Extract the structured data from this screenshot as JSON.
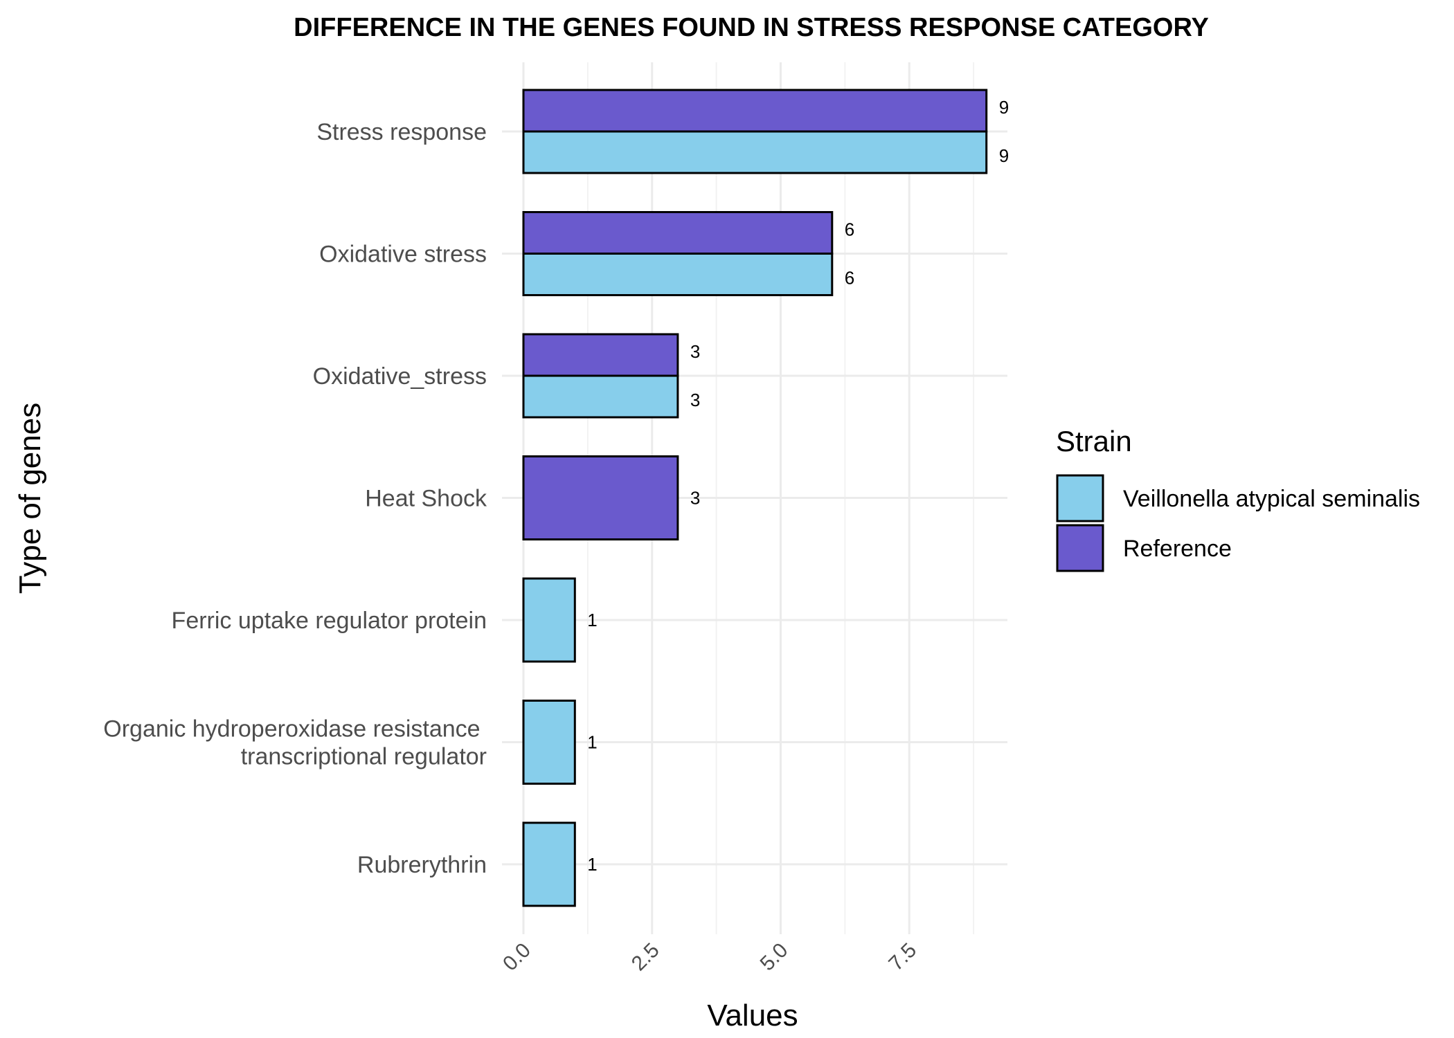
{
  "chart_data": {
    "type": "bar",
    "orientation": "horizontal",
    "title": "DIFFERENCE IN THE GENES FOUND IN STRESS RESPONSE CATEGORY",
    "xlabel": "Values",
    "ylabel": "Type of genes",
    "xlim": [
      0,
      9.5
    ],
    "x_ticks": [
      "0.0",
      "2.5",
      "5.0",
      "7.5"
    ],
    "x_tick_values": [
      0,
      2.5,
      5,
      7.5
    ],
    "grid": true,
    "legend": {
      "title": "Strain",
      "position": "right",
      "entries": [
        {
          "name": "Veillonella atypical seminalis",
          "color": "#87ceeb"
        },
        {
          "name": "Reference",
          "color": "#6a5acd"
        }
      ]
    },
    "categories": [
      {
        "label": [
          "Stress response"
        ],
        "values": {
          "Reference": 9,
          "Veillonella atypical seminalis": 9
        }
      },
      {
        "label": [
          "Oxidative stress"
        ],
        "values": {
          "Reference": 6,
          "Veillonella atypical seminalis": 6
        }
      },
      {
        "label": [
          "Oxidative_stress"
        ],
        "values": {
          "Reference": 3,
          "Veillonella atypical seminalis": 3
        }
      },
      {
        "label": [
          "Heat Shock"
        ],
        "values": {
          "Reference": 3
        }
      },
      {
        "label": [
          "Ferric uptake regulator protein"
        ],
        "values": {
          "Veillonella atypical seminalis": 1
        }
      },
      {
        "label": [
          "Organic hydroperoxidase resistance ",
          "transcriptional regulator"
        ],
        "values": {
          "Veillonella atypical seminalis": 1
        }
      },
      {
        "label": [
          "Rubrerythrin"
        ],
        "values": {
          "Veillonella atypical seminalis": 1
        }
      }
    ]
  }
}
